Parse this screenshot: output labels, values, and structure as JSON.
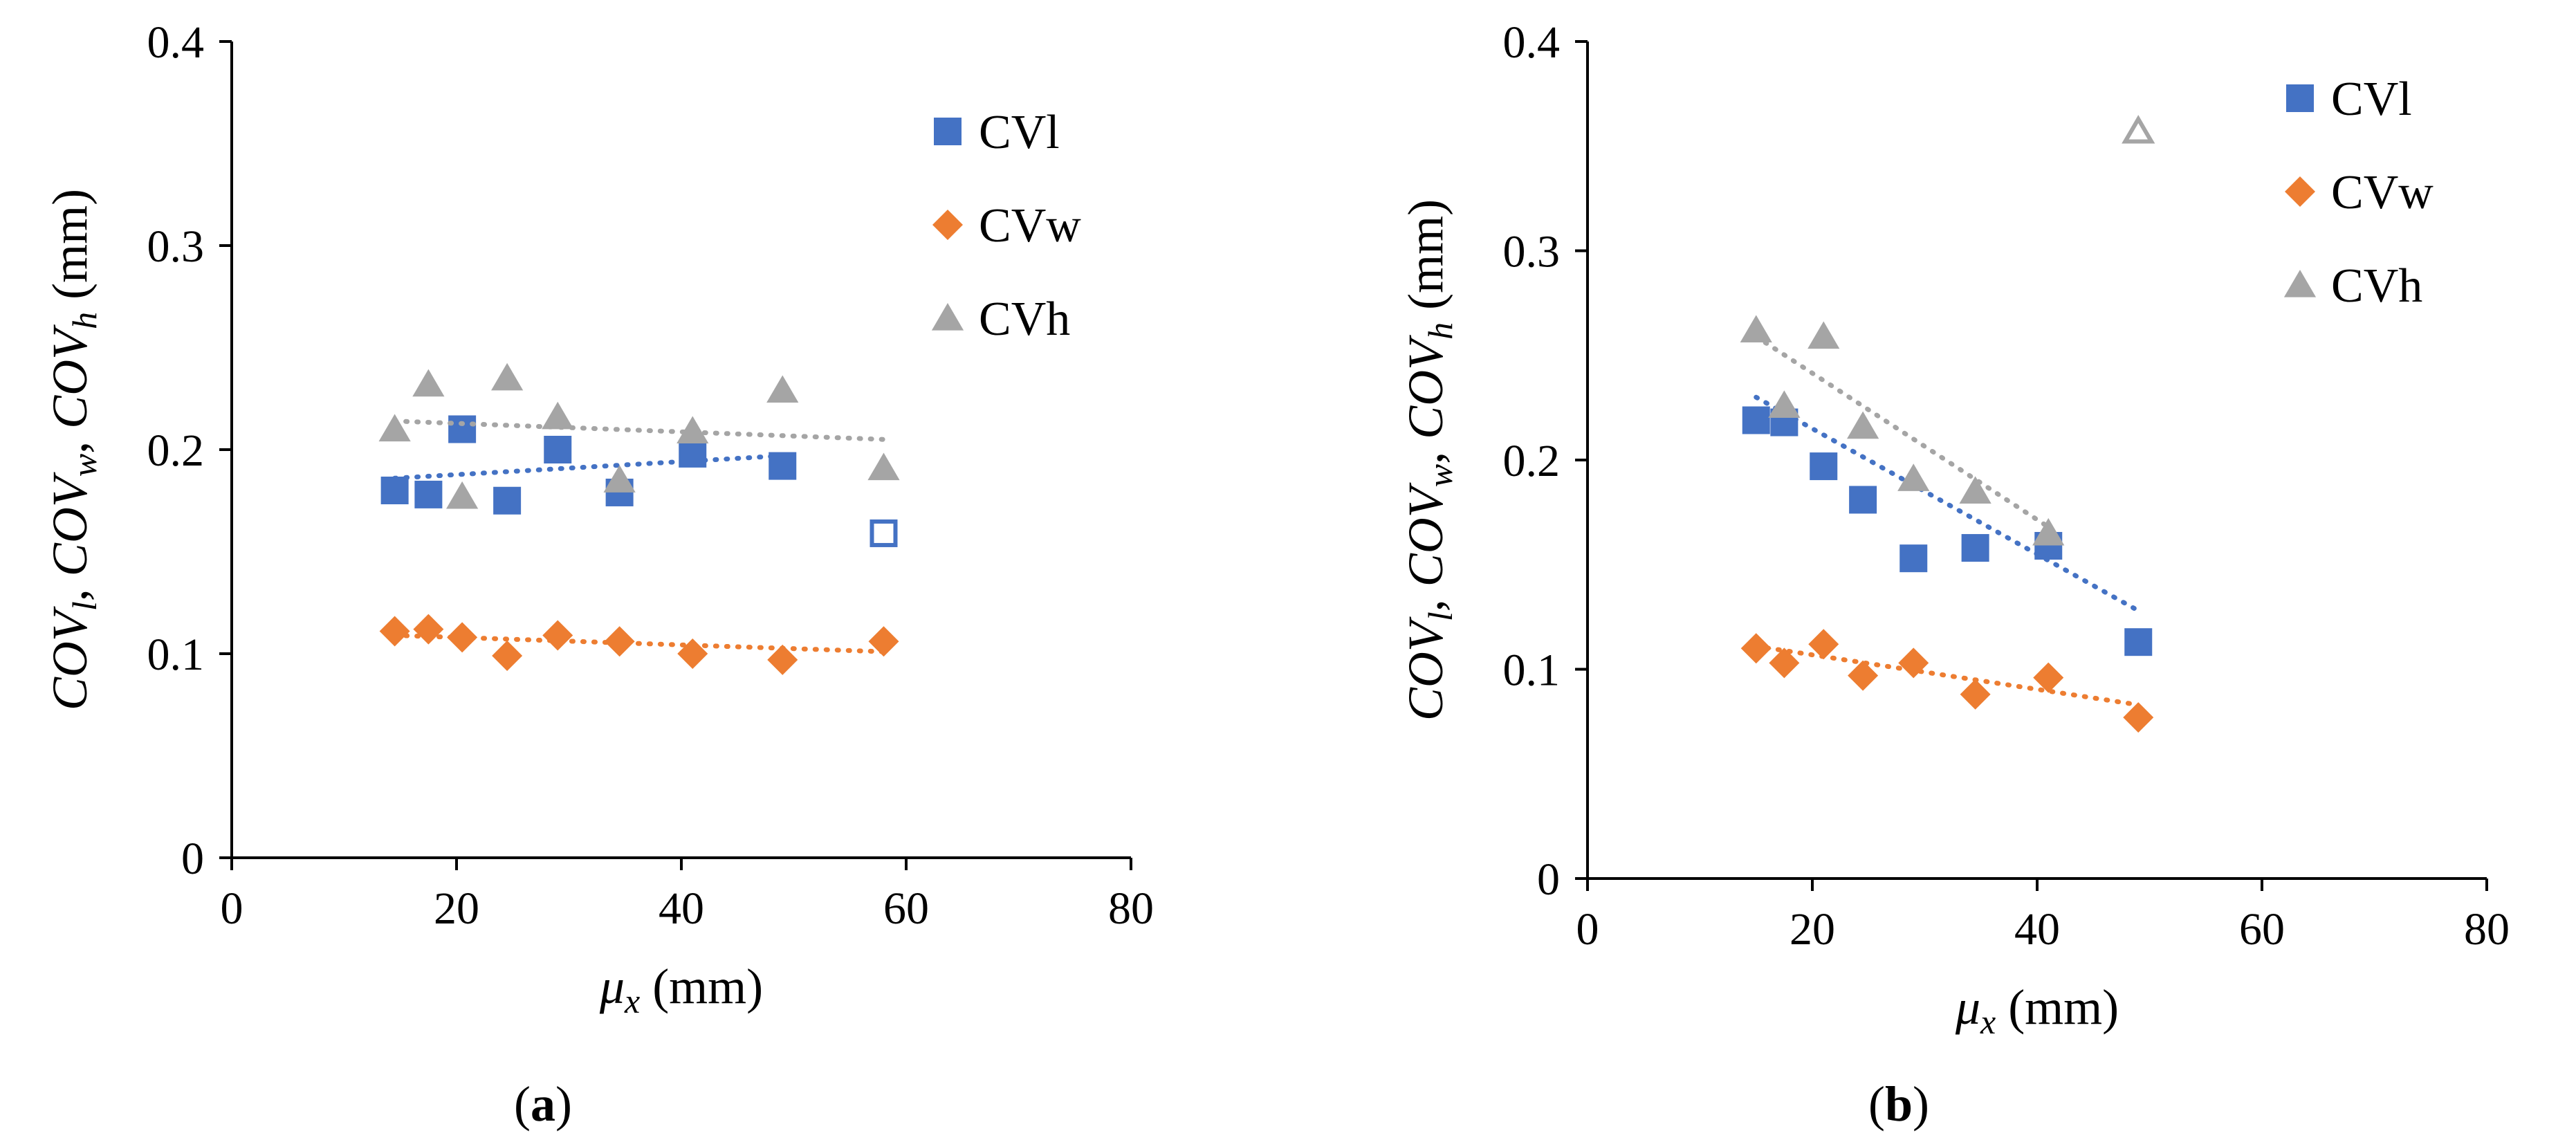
{
  "colors": {
    "cvl": "#4472C4",
    "cvw": "#ED7D31",
    "cvh": "#A5A5A5"
  },
  "chart_data": [
    {
      "type": "scatter",
      "panel_label": "a",
      "xlim": [
        0,
        80
      ],
      "ylim": [
        0,
        0.4
      ],
      "xticks": [
        "0",
        "20",
        "40",
        "60",
        "80"
      ],
      "yticks": [
        "0",
        "0.1",
        "0.2",
        "0.3",
        "0.4"
      ],
      "xlabel": {
        "sym": "μ",
        "sub": "x",
        "unit": " (mm)"
      },
      "ylabel": [
        {
          "t": "COV",
          "i": true
        },
        {
          "t": "l",
          "i": true,
          "sub": true
        },
        {
          "t": ", ",
          "i": false
        },
        {
          "t": "COV",
          "i": true
        },
        {
          "t": "w",
          "i": true,
          "sub": true
        },
        {
          "t": ", ",
          "i": false
        },
        {
          "t": "COV",
          "i": true
        },
        {
          "t": "h",
          "i": true,
          "sub": true
        },
        {
          "t": " (mm)",
          "i": false
        }
      ],
      "legend": {
        "position": "top-right",
        "entries": [
          "CVl",
          "CVw",
          "CVh"
        ]
      },
      "series": [
        {
          "name": "CVl",
          "marker": "square",
          "color": "#4472C4",
          "x": [
            14.5,
            17.5,
            20.5,
            24.5,
            29,
            34.5,
            41,
            49
          ],
          "y": [
            0.18,
            0.178,
            0.21,
            0.175,
            0.2,
            0.179,
            0.198,
            0.192
          ],
          "trend": {
            "x": [
              14.5,
              49
            ],
            "y": [
              0.186,
              0.197
            ]
          },
          "outliers": [
            {
              "x": 58,
              "y": 0.159
            }
          ]
        },
        {
          "name": "CVw",
          "marker": "diamond",
          "color": "#ED7D31",
          "x": [
            14.5,
            17.5,
            20.5,
            24.5,
            29,
            34.5,
            41,
            49,
            58
          ],
          "y": [
            0.111,
            0.112,
            0.108,
            0.099,
            0.109,
            0.106,
            0.1,
            0.097,
            0.106
          ],
          "trend": {
            "x": [
              14.5,
              58
            ],
            "y": [
              0.109,
              0.101
            ]
          },
          "outliers": []
        },
        {
          "name": "CVh",
          "marker": "triangle",
          "color": "#A5A5A5",
          "x": [
            14.5,
            17.5,
            20.5,
            24.5,
            29,
            34.5,
            41,
            49,
            58
          ],
          "y": [
            0.21,
            0.232,
            0.177,
            0.235,
            0.216,
            0.185,
            0.209,
            0.229,
            0.191
          ],
          "trend": {
            "x": [
              14.5,
              58
            ],
            "y": [
              0.214,
              0.205
            ]
          },
          "outliers": []
        }
      ]
    },
    {
      "type": "scatter",
      "panel_label": "b",
      "xlim": [
        0,
        80
      ],
      "ylim": [
        0,
        0.4
      ],
      "xticks": [
        "0",
        "20",
        "40",
        "60",
        "80"
      ],
      "yticks": [
        "0",
        "0.1",
        "0.2",
        "0.3",
        "0.4"
      ],
      "xlabel": {
        "sym": "μ",
        "sub": "x",
        "unit": " (mm)"
      },
      "ylabel": [
        {
          "t": "COV",
          "i": true
        },
        {
          "t": "l",
          "i": true,
          "sub": true
        },
        {
          "t": ", ",
          "i": false
        },
        {
          "t": "COV",
          "i": true
        },
        {
          "t": "w",
          "i": true,
          "sub": true
        },
        {
          "t": ", ",
          "i": false
        },
        {
          "t": "COV",
          "i": true
        },
        {
          "t": "h",
          "i": true,
          "sub": true
        },
        {
          "t": " (mm)",
          "i": false
        }
      ],
      "legend": {
        "position": "top-right",
        "entries": [
          "CVl",
          "CVw",
          "CVh"
        ]
      },
      "series": [
        {
          "name": "CVl",
          "marker": "square",
          "color": "#4472C4",
          "x": [
            15,
            17.5,
            21,
            24.5,
            29,
            34.5,
            41,
            49
          ],
          "y": [
            0.219,
            0.218,
            0.197,
            0.181,
            0.153,
            0.158,
            0.159,
            0.113
          ],
          "trend": {
            "x": [
              15,
              49
            ],
            "y": [
              0.23,
              0.128
            ]
          },
          "outliers": []
        },
        {
          "name": "CVw",
          "marker": "diamond",
          "color": "#ED7D31",
          "x": [
            15,
            17.5,
            21,
            24.5,
            29,
            34.5,
            41,
            49
          ],
          "y": [
            0.11,
            0.103,
            0.112,
            0.097,
            0.103,
            0.088,
            0.096,
            0.077
          ],
          "trend": {
            "x": [
              15,
              49
            ],
            "y": [
              0.111,
              0.083
            ]
          },
          "outliers": []
        },
        {
          "name": "CVh",
          "marker": "triangle",
          "color": "#A5A5A5",
          "x": [
            15,
            17.5,
            21,
            24.5,
            29,
            34.5,
            41
          ],
          "y": [
            0.262,
            0.226,
            0.259,
            0.216,
            0.191,
            0.185,
            0.165
          ],
          "trend": {
            "x": [
              15,
              41
            ],
            "y": [
              0.259,
              0.168
            ]
          },
          "outliers": [
            {
              "x": 49,
              "y": 0.357
            }
          ]
        }
      ]
    }
  ]
}
